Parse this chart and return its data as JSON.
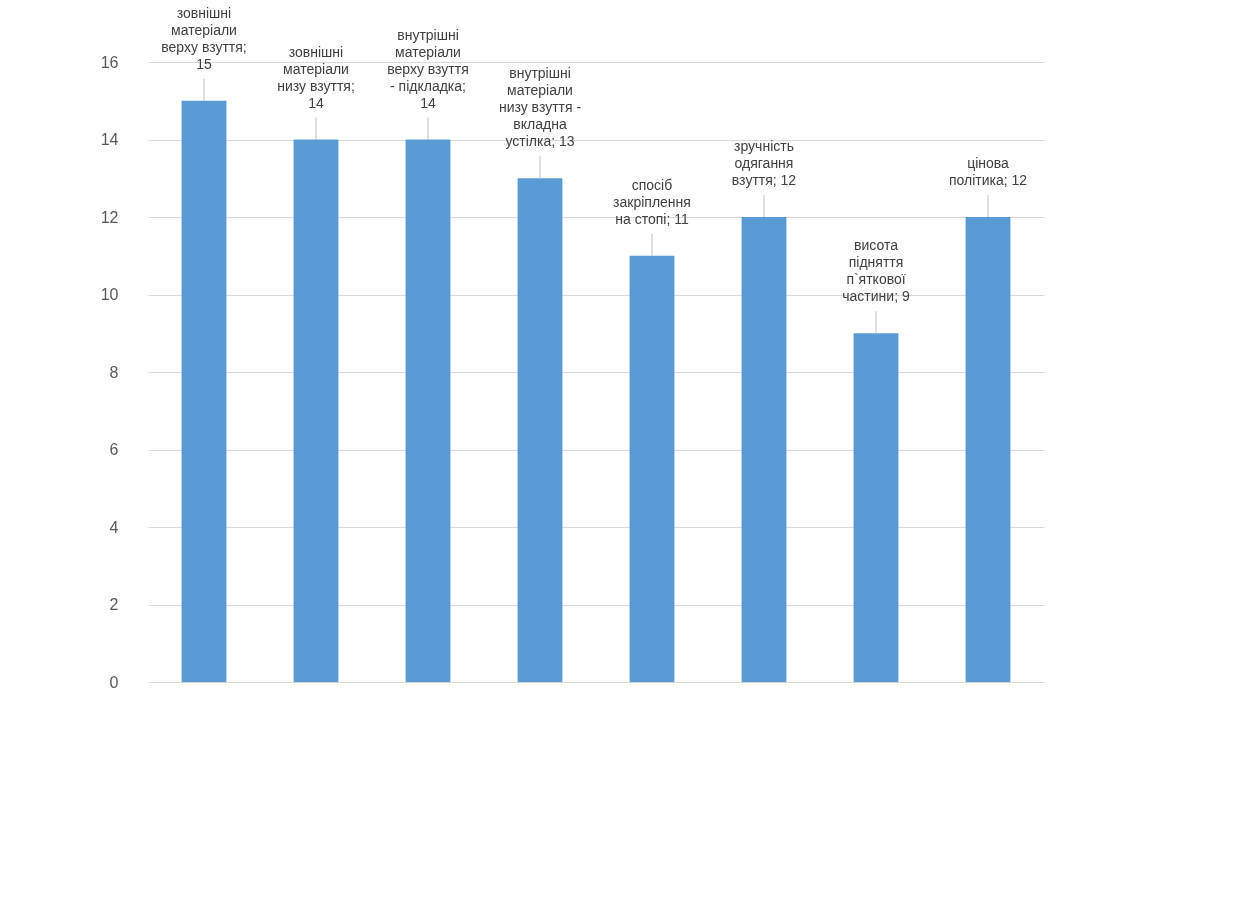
{
  "chart_data": {
    "type": "bar",
    "categories": [
      null,
      null,
      null,
      null,
      null,
      null,
      null,
      null
    ],
    "values": [
      15,
      14,
      14,
      13,
      11,
      12,
      9,
      12
    ],
    "value_labels": [
      "зовнішні матеріали верху взуття; 15",
      "зовнішні матеріали низу взуття; 14",
      "внутрішні матеріали верху взуття - підкладка; 14",
      "внутрішні матеріали низу взуття - вкладна устілка; 13",
      "спосіб закріплення на стопі; 11",
      "зручність одягання взуття; 12",
      "висота підняття п`яткової частини; 9",
      "цінова політика; 12"
    ],
    "color": "#5b9bd5",
    "ylim": [
      0,
      16
    ],
    "yticks": [
      0,
      2,
      4,
      6,
      8,
      10,
      12,
      14,
      16
    ],
    "grid": "y",
    "tick_labels": "y"
  }
}
